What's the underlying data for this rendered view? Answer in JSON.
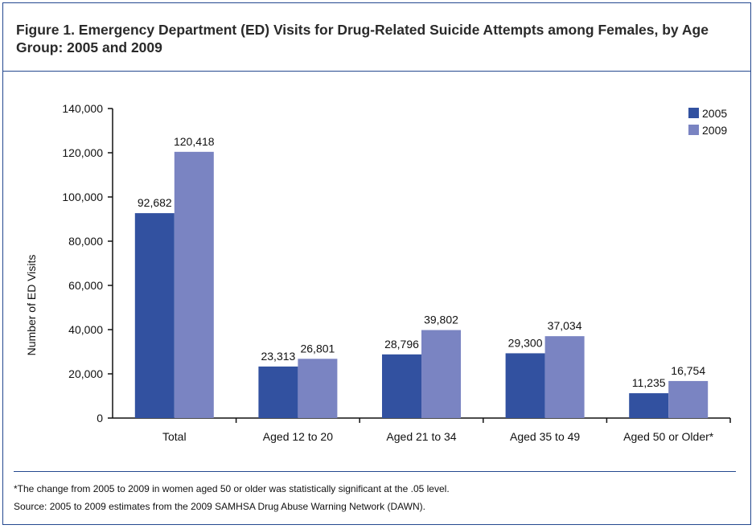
{
  "figure": {
    "title": "Figure 1. Emergency Department (ED) Visits for Drug-Related Suicide Attempts among Females, by Age Group: 2005 and 2009",
    "footnote": "*The change from 2005 to 2009 in women aged 50 or older was statistically significant at the .05 level.",
    "source": "Source: 2005 to 2009 estimates from the 2009 SAMHSA Drug Abuse Warning Network (DAWN)."
  },
  "colors": {
    "frame": "#24488f",
    "series_2005": "#3251a0",
    "series_2009": "#7a84c2"
  },
  "chart_data": {
    "type": "bar",
    "title": "Figure 1. Emergency Department (ED) Visits for Drug-Related Suicide Attempts among Females, by Age Group: 2005 and 2009",
    "xlabel": "",
    "ylabel": "Number of ED Visits",
    "ylim": [
      0,
      140000
    ],
    "yticks": [
      0,
      20000,
      40000,
      60000,
      80000,
      100000,
      120000,
      140000
    ],
    "ytick_labels": [
      "0",
      "20,000",
      "40,000",
      "60,000",
      "80,000",
      "100,000",
      "120,000",
      "140,000"
    ],
    "categories": [
      "Total",
      "Aged 12 to 20",
      "Aged 21 to 34",
      "Aged 35 to 49",
      "Aged 50 or Older*"
    ],
    "series": [
      {
        "name": "2005",
        "values": [
          92682,
          23313,
          28796,
          29300,
          11235
        ],
        "labels": [
          "92,682",
          "23,313",
          "28,796",
          "29,300",
          "11,235"
        ]
      },
      {
        "name": "2009",
        "values": [
          120418,
          26801,
          39802,
          37034,
          16754
        ],
        "labels": [
          "120,418",
          "26,801",
          "39,802",
          "37,034",
          "16,754"
        ]
      }
    ],
    "grid": false,
    "legend_position": "top-right"
  }
}
